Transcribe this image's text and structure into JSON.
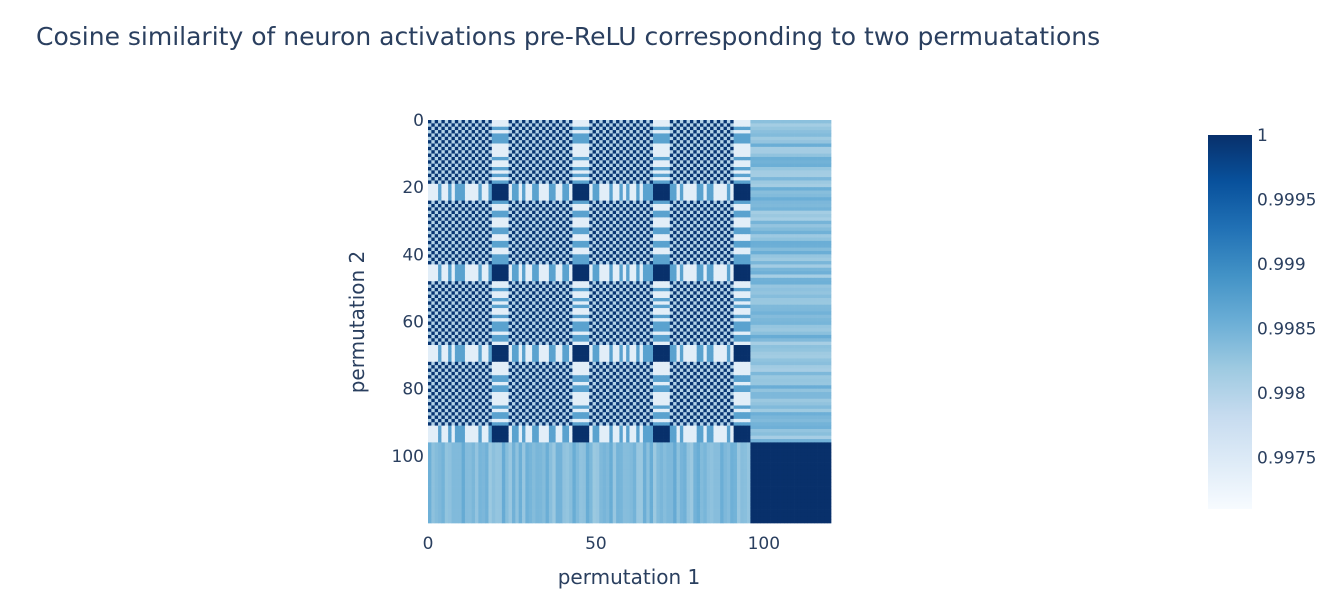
{
  "chart_data": {
    "type": "heatmap",
    "title": "Cosine similarity of neuron activations pre-ReLU corresponding to two permuatations",
    "xlabel": "permutation 1",
    "ylabel": "permutation 2",
    "x_range": [
      0,
      120
    ],
    "y_range": [
      0,
      120
    ],
    "y_reversed": true,
    "x_ticks": [
      "0",
      "50",
      "100"
    ],
    "y_ticks": [
      "0",
      "20",
      "40",
      "60",
      "80",
      "100"
    ],
    "colorscale": "Blues",
    "colorbar": {
      "range": [
        0.9971,
        1.0
      ],
      "ticks": [
        "1",
        "0.9995",
        "0.999",
        "0.9985",
        "0.998",
        "0.9975"
      ],
      "colors": [
        "#f7fbff",
        "#deebf7",
        "#c6dbef",
        "#9ecae1",
        "#6baed6",
        "#4292c6",
        "#2171b5",
        "#08519c",
        "#08306b"
      ]
    },
    "z_structure": {
      "n": 120,
      "block_size": 24,
      "full_blocks": 4,
      "diagonal_subblock": [
        19,
        24
      ],
      "tail_start": 96,
      "values": {
        "diag": 1.0,
        "checker_hi": 0.99995,
        "checker_lo": 0.998,
        "band_x": 0.9987,
        "band_light": 0.9974,
        "tail_row": 0.9986,
        "tail_block": 1.0
      }
    }
  }
}
